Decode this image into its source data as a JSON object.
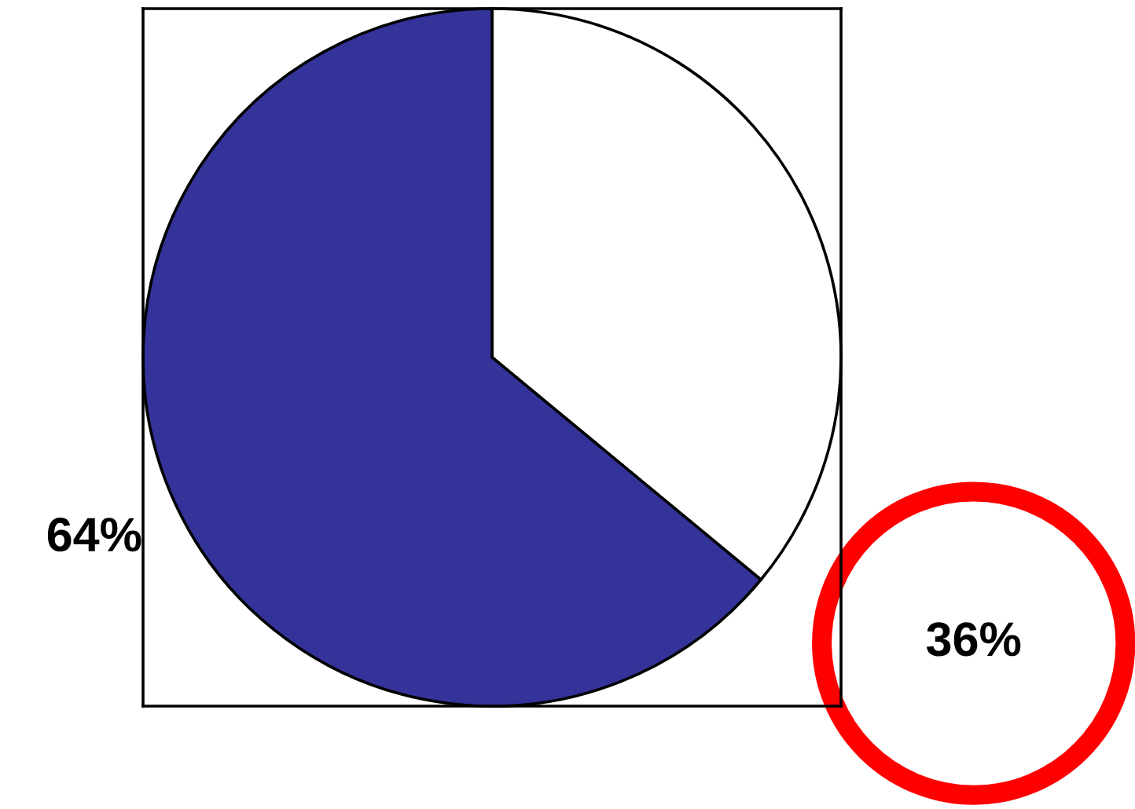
{
  "chart_data": {
    "type": "pie",
    "categories": [
      null,
      null
    ],
    "values": [
      36,
      64
    ],
    "colors": [
      "#ffffff",
      "#333399"
    ],
    "value_labels": [
      "36%",
      "64%"
    ]
  }
}
